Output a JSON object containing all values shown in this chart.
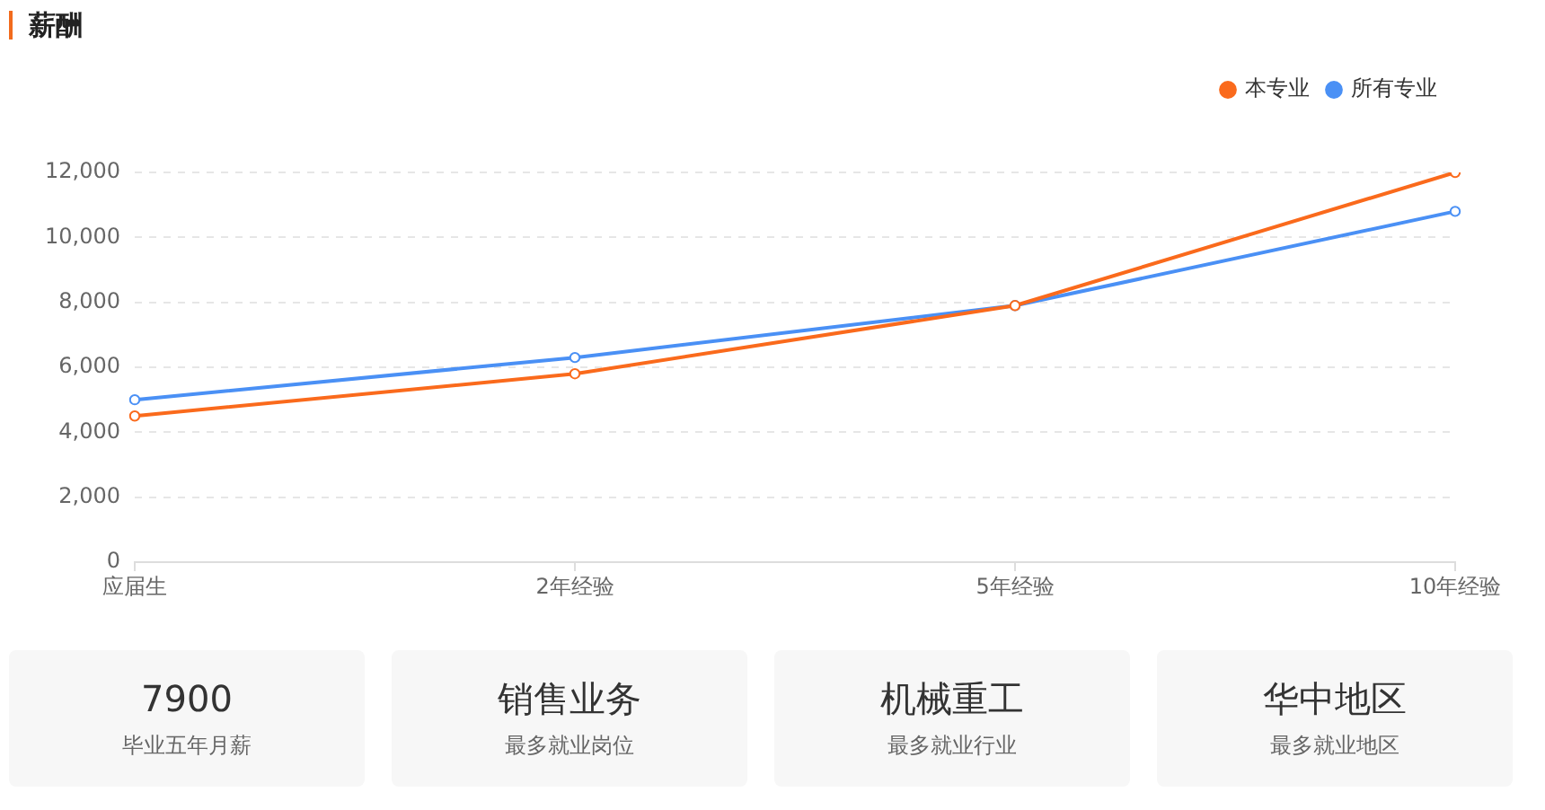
{
  "chart_data": [
    {
      "type": "line",
      "title": "薪酬",
      "categories": [
        "应届生",
        "2年经验",
        "5年经验",
        "10年经验"
      ],
      "series": [
        {
          "name": "本专业",
          "color": "#fa6a1c",
          "values": [
            4500,
            5800,
            7900,
            12000
          ]
        },
        {
          "name": "所有专业",
          "color": "#4a90f5",
          "values": [
            5000,
            6300,
            7900,
            10800
          ]
        }
      ],
      "ylim": [
        0,
        12000
      ],
      "yticks": [
        0,
        {
          "value": 2000,
          "label": "2,000"
        },
        {
          "value": 4000,
          "label": "4,000"
        },
        {
          "value": 6000,
          "label": "6,000"
        },
        {
          "value": 8000,
          "label": "8,000"
        },
        {
          "value": 10000,
          "label": "10,000"
        },
        {
          "value": 12000,
          "label": "12,000"
        }
      ],
      "grid": "y",
      "legend": "top right",
      "marker": "circle",
      "line_style": "solid"
    },
    {
      "type": "other",
      "annotations": [
        "7900",
        "毕业五年月薪",
        "销售业务",
        "最多就业岗位",
        "机械重工",
        "最多就业行业",
        "华中地区",
        "最多就业地区"
      ]
    }
  ]
}
